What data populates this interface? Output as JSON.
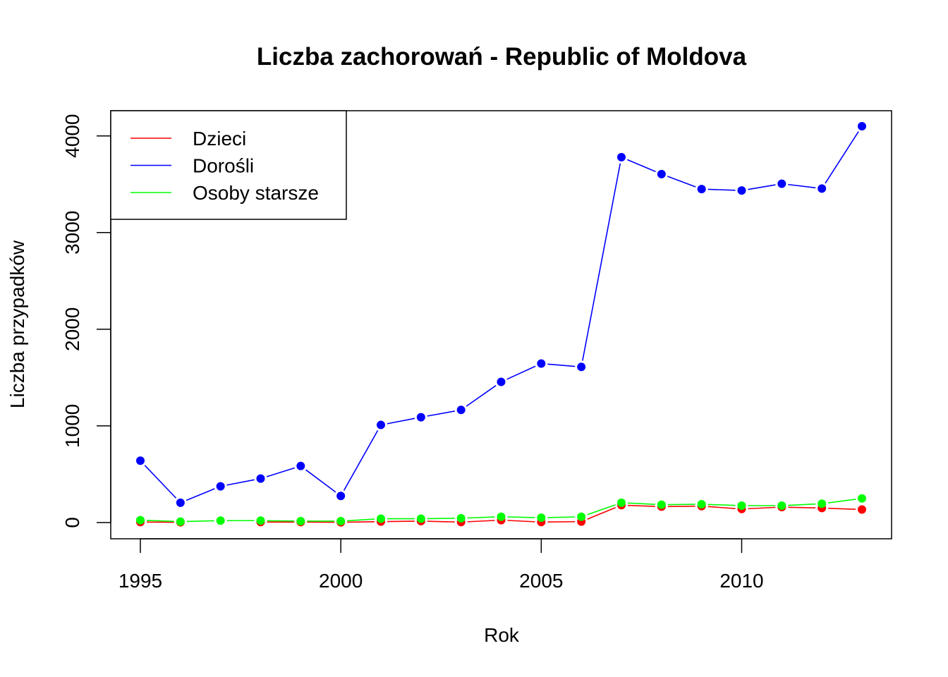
{
  "chart_data": {
    "type": "line",
    "title": "Liczba zachorowań -  Republic of Moldova",
    "xlabel": "Rok",
    "ylabel": "Liczba przypadków",
    "xlim": [
      1995,
      2013
    ],
    "ylim": [
      0,
      4100
    ],
    "x_ticks": [
      "1995",
      "2000",
      "2005",
      "2010"
    ],
    "y_ticks": [
      "0",
      "1000",
      "2000",
      "3000",
      "4000"
    ],
    "grid": false,
    "legend_position": "top-left",
    "x": [
      1995,
      1996,
      1997,
      1998,
      1999,
      2000,
      2001,
      2002,
      2003,
      2004,
      2005,
      2006,
      2007,
      2008,
      2009,
      2010,
      2011,
      2012,
      2013
    ],
    "series": [
      {
        "name": "Dzieci",
        "color": "#ff0000",
        "values": [
          5,
          3,
          null,
          5,
          5,
          3,
          10,
          15,
          5,
          25,
          5,
          10,
          180,
          165,
          170,
          140,
          160,
          150,
          135
        ]
      },
      {
        "name": "Dorośli",
        "color": "#0000ff",
        "values": [
          640,
          205,
          375,
          455,
          585,
          275,
          1010,
          1090,
          1165,
          1455,
          1645,
          1610,
          3780,
          3605,
          3450,
          3435,
          3505,
          3455,
          4100
        ]
      },
      {
        "name": "Osoby starsze",
        "color": "#00ff00",
        "values": [
          25,
          10,
          20,
          20,
          15,
          15,
          40,
          40,
          45,
          60,
          50,
          60,
          205,
          185,
          190,
          175,
          175,
          195,
          250
        ]
      }
    ]
  }
}
